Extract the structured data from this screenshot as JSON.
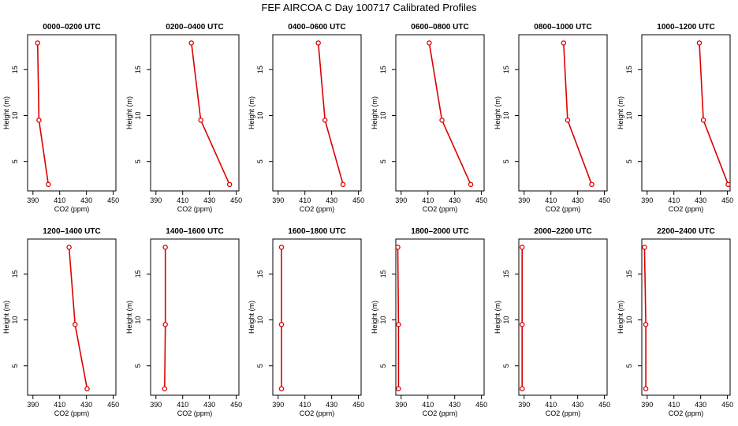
{
  "figure": {
    "title": "FEF AIRCOA C  Day 100717  Calibrated Profiles"
  },
  "style": {
    "line_color": "#dd0000",
    "point_color": "#dd0000",
    "axis_color": "#000000"
  },
  "chart_data": [
    {
      "type": "line",
      "title": "0000–0200 UTC",
      "xlabel": "CO2 (ppm)",
      "ylabel": "Height (m)",
      "xlim": [
        386,
        452
      ],
      "ylim": [
        1.8,
        18.8
      ],
      "xticks": [
        390,
        410,
        430,
        450
      ],
      "yticks": [
        5,
        10,
        15
      ],
      "series": [
        {
          "x": [
            393.5,
            394.5,
            401.5
          ],
          "y": [
            17.9,
            9.5,
            2.5
          ]
        }
      ]
    },
    {
      "type": "line",
      "title": "0200–0400 UTC",
      "xlabel": "CO2 (ppm)",
      "ylabel": "Height (m)",
      "xlim": [
        386,
        452
      ],
      "ylim": [
        1.8,
        18.8
      ],
      "xticks": [
        390,
        410,
        430,
        450
      ],
      "yticks": [
        5,
        10,
        15
      ],
      "series": [
        {
          "x": [
            416.5,
            423.5,
            445.0
          ],
          "y": [
            17.9,
            9.5,
            2.5
          ]
        }
      ]
    },
    {
      "type": "line",
      "title": "0400–0600 UTC",
      "xlabel": "CO2 (ppm)",
      "ylabel": "Height (m)",
      "xlim": [
        386,
        452
      ],
      "ylim": [
        1.8,
        18.8
      ],
      "xticks": [
        390,
        410,
        430,
        450
      ],
      "yticks": [
        5,
        10,
        15
      ],
      "series": [
        {
          "x": [
            420.0,
            425.0,
            438.5
          ],
          "y": [
            17.9,
            9.5,
            2.5
          ]
        }
      ]
    },
    {
      "type": "line",
      "title": "0600–0800 UTC",
      "xlabel": "CO2 (ppm)",
      "ylabel": "Height (m)",
      "xlim": [
        386,
        452
      ],
      "ylim": [
        1.8,
        18.8
      ],
      "xticks": [
        390,
        410,
        430,
        450
      ],
      "yticks": [
        5,
        10,
        15
      ],
      "series": [
        {
          "x": [
            411.0,
            420.5,
            442.0
          ],
          "y": [
            17.9,
            9.5,
            2.5
          ]
        }
      ]
    },
    {
      "type": "line",
      "title": "0800–1000 UTC",
      "xlabel": "CO2 (ppm)",
      "ylabel": "Height (m)",
      "xlim": [
        386,
        452
      ],
      "ylim": [
        1.8,
        18.8
      ],
      "xticks": [
        390,
        410,
        430,
        450
      ],
      "yticks": [
        5,
        10,
        15
      ],
      "series": [
        {
          "x": [
            419.5,
            422.5,
            440.5
          ],
          "y": [
            17.9,
            9.5,
            2.5
          ]
        }
      ]
    },
    {
      "type": "line",
      "title": "1000–1200 UTC",
      "xlabel": "CO2 (ppm)",
      "ylabel": "Height (m)",
      "xlim": [
        386,
        452
      ],
      "ylim": [
        1.8,
        18.8
      ],
      "xticks": [
        390,
        410,
        430,
        450
      ],
      "yticks": [
        5,
        10,
        15
      ],
      "series": [
        {
          "x": [
            429.0,
            432.0,
            450.5
          ],
          "y": [
            17.9,
            9.5,
            2.5
          ]
        }
      ]
    },
    {
      "type": "line",
      "title": "1200–1400 UTC",
      "xlabel": "CO2 (ppm)",
      "ylabel": "Height (m)",
      "xlim": [
        386,
        452
      ],
      "ylim": [
        1.8,
        18.8
      ],
      "xticks": [
        390,
        410,
        430,
        450
      ],
      "yticks": [
        5,
        10,
        15
      ],
      "series": [
        {
          "x": [
            417.0,
            421.5,
            430.5
          ],
          "y": [
            17.9,
            9.5,
            2.5
          ]
        }
      ]
    },
    {
      "type": "line",
      "title": "1400–1600 UTC",
      "xlabel": "CO2 (ppm)",
      "ylabel": "Height (m)",
      "xlim": [
        386,
        452
      ],
      "ylim": [
        1.8,
        18.8
      ],
      "xticks": [
        390,
        410,
        430,
        450
      ],
      "yticks": [
        5,
        10,
        15
      ],
      "series": [
        {
          "x": [
            397.0,
            397.0,
            396.5
          ],
          "y": [
            17.9,
            9.5,
            2.5
          ]
        }
      ]
    },
    {
      "type": "line",
      "title": "1600–1800 UTC",
      "xlabel": "CO2 (ppm)",
      "ylabel": "Height (m)",
      "xlim": [
        386,
        452
      ],
      "ylim": [
        1.8,
        18.8
      ],
      "xticks": [
        390,
        410,
        430,
        450
      ],
      "yticks": [
        5,
        10,
        15
      ],
      "series": [
        {
          "x": [
            392.5,
            392.5,
            392.5
          ],
          "y": [
            17.9,
            9.5,
            2.5
          ]
        }
      ]
    },
    {
      "type": "line",
      "title": "1800–2000 UTC",
      "xlabel": "CO2 (ppm)",
      "ylabel": "Height (m)",
      "xlim": [
        386,
        452
      ],
      "ylim": [
        1.8,
        18.8
      ],
      "xticks": [
        390,
        410,
        430,
        450
      ],
      "yticks": [
        5,
        10,
        15
      ],
      "series": [
        {
          "x": [
            387.5,
            388.0,
            388.0
          ],
          "y": [
            17.9,
            9.5,
            2.5
          ]
        }
      ]
    },
    {
      "type": "line",
      "title": "2000–2200 UTC",
      "xlabel": "CO2 (ppm)",
      "ylabel": "Height (m)",
      "xlim": [
        386,
        452
      ],
      "ylim": [
        1.8,
        18.8
      ],
      "xticks": [
        390,
        410,
        430,
        450
      ],
      "yticks": [
        5,
        10,
        15
      ],
      "series": [
        {
          "x": [
            388.5,
            388.5,
            388.5
          ],
          "y": [
            17.9,
            9.5,
            2.5
          ]
        }
      ]
    },
    {
      "type": "line",
      "title": "2200–2400 UTC",
      "xlabel": "CO2 (ppm)",
      "ylabel": "Height (m)",
      "xlim": [
        386,
        452
      ],
      "ylim": [
        1.8,
        18.8
      ],
      "xticks": [
        390,
        410,
        430,
        450
      ],
      "yticks": [
        5,
        10,
        15
      ],
      "series": [
        {
          "x": [
            388.0,
            389.0,
            389.0
          ],
          "y": [
            17.9,
            9.5,
            2.5
          ]
        }
      ]
    }
  ]
}
